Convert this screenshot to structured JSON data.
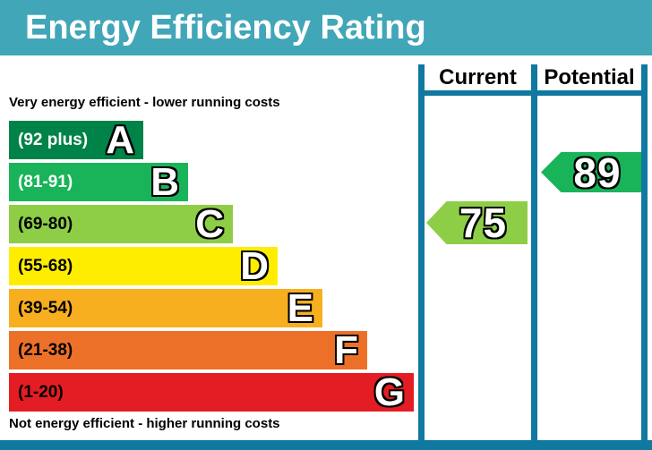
{
  "title": "Energy Efficiency Rating",
  "top_note": "Very energy efficient - lower running costs",
  "bottom_note": "Not energy efficient - higher running costs",
  "columns": {
    "current": "Current",
    "potential": "Potential"
  },
  "bands": [
    {
      "letter": "A",
      "range": "(92 plus)",
      "color": "#008348",
      "text_color": "#ffffff"
    },
    {
      "letter": "B",
      "range": "(81-91)",
      "color": "#19b459",
      "text_color": "#ffffff"
    },
    {
      "letter": "C",
      "range": "(69-80)",
      "color": "#8dce46",
      "text_color": "#000000"
    },
    {
      "letter": "D",
      "range": "(55-68)",
      "color": "#ffed00",
      "text_color": "#000000"
    },
    {
      "letter": "E",
      "range": "(39-54)",
      "color": "#f7af20",
      "text_color": "#000000"
    },
    {
      "letter": "F",
      "range": "(21-38)",
      "color": "#ed7029",
      "text_color": "#000000"
    },
    {
      "letter": "G",
      "range": "(1-20)",
      "color": "#e31d23",
      "text_color": "#000000"
    }
  ],
  "current": {
    "value": "75",
    "band": "C",
    "color": "#8dce46"
  },
  "potential": {
    "value": "89",
    "band": "B",
    "color": "#19b459"
  },
  "colors": {
    "header_bg": "#41a6b8",
    "table_border": "#1178a0"
  },
  "chart_data": {
    "type": "bar",
    "title": "Energy Efficiency Rating",
    "categories": [
      "A",
      "B",
      "C",
      "D",
      "E",
      "F",
      "G"
    ],
    "band_ranges": [
      "92 plus",
      "81-91",
      "69-80",
      "55-68",
      "39-54",
      "21-38",
      "1-20"
    ],
    "band_colors": [
      "#008348",
      "#19b459",
      "#8dce46",
      "#ffed00",
      "#f7af20",
      "#ed7029",
      "#e31d23"
    ],
    "series": [
      {
        "name": "Current rating",
        "value": 75,
        "band": "C"
      },
      {
        "name": "Potential rating",
        "value": 89,
        "band": "B"
      }
    ],
    "value_range": [
      1,
      100
    ],
    "orientation": "horizontal",
    "legend_position": "none"
  }
}
